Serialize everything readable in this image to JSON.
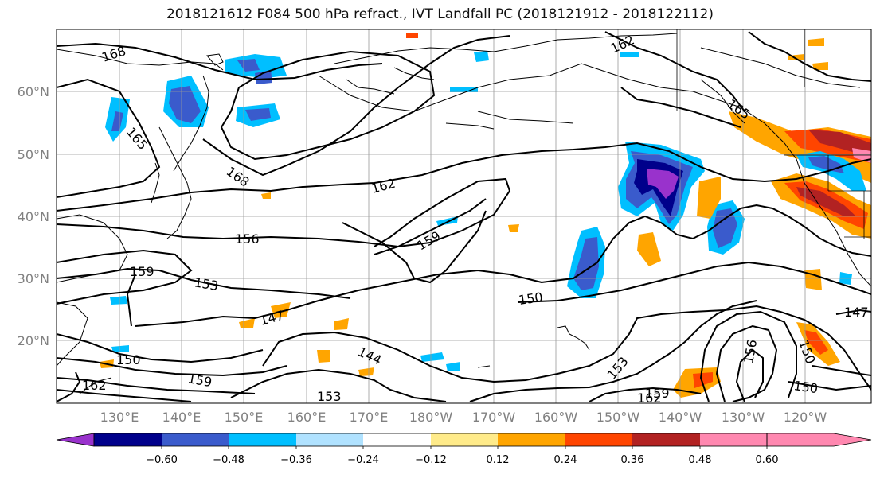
{
  "title": "2018121612 F084 500 hPa refract., IVT Landfall PC (2018121912 - 2018122112)",
  "lat_labels": [
    "60°N",
    "50°N",
    "40°N",
    "30°N",
    "20°N"
  ],
  "lon_labels": [
    "130°E",
    "140°E",
    "150°E",
    "160°E",
    "170°E",
    "180°W",
    "170°W",
    "160°W",
    "150°W",
    "140°W",
    "130°W",
    "120°W"
  ],
  "contour_labels": [
    "168",
    "165",
    "168",
    "162",
    "162",
    "165",
    "156",
    "159",
    "159",
    "153",
    "150",
    "147",
    "144",
    "150",
    "159",
    "162",
    "153",
    "159",
    "162",
    "153",
    "156",
    "150",
    "150",
    "147"
  ],
  "colorbar": {
    "ticks": [
      "−0.60",
      "−0.48",
      "−0.36",
      "−0.24",
      "−0.12",
      "0.12",
      "0.24",
      "0.36",
      "0.48",
      "0.60"
    ],
    "colors": [
      "#9932cc",
      "#00008b",
      "#3a5bcc",
      "#00bfff",
      "#b0e2ff",
      "#ffffff",
      "#ffeb8a",
      "#ffa500",
      "#ff4500",
      "#b22222",
      "#ff88b0"
    ]
  },
  "fill_colors": {
    "neg_light": "#b0e2ff",
    "neg_cyan": "#00bfff",
    "neg_blue": "#3a5bcc",
    "neg_navy": "#00008b",
    "neg_purple": "#9932cc",
    "pos_yellow": "#ffeb8a",
    "pos_orange": "#ffa500",
    "pos_red": "#ff4500",
    "pos_darkred": "#b22222",
    "pos_pink": "#ff88b0"
  }
}
